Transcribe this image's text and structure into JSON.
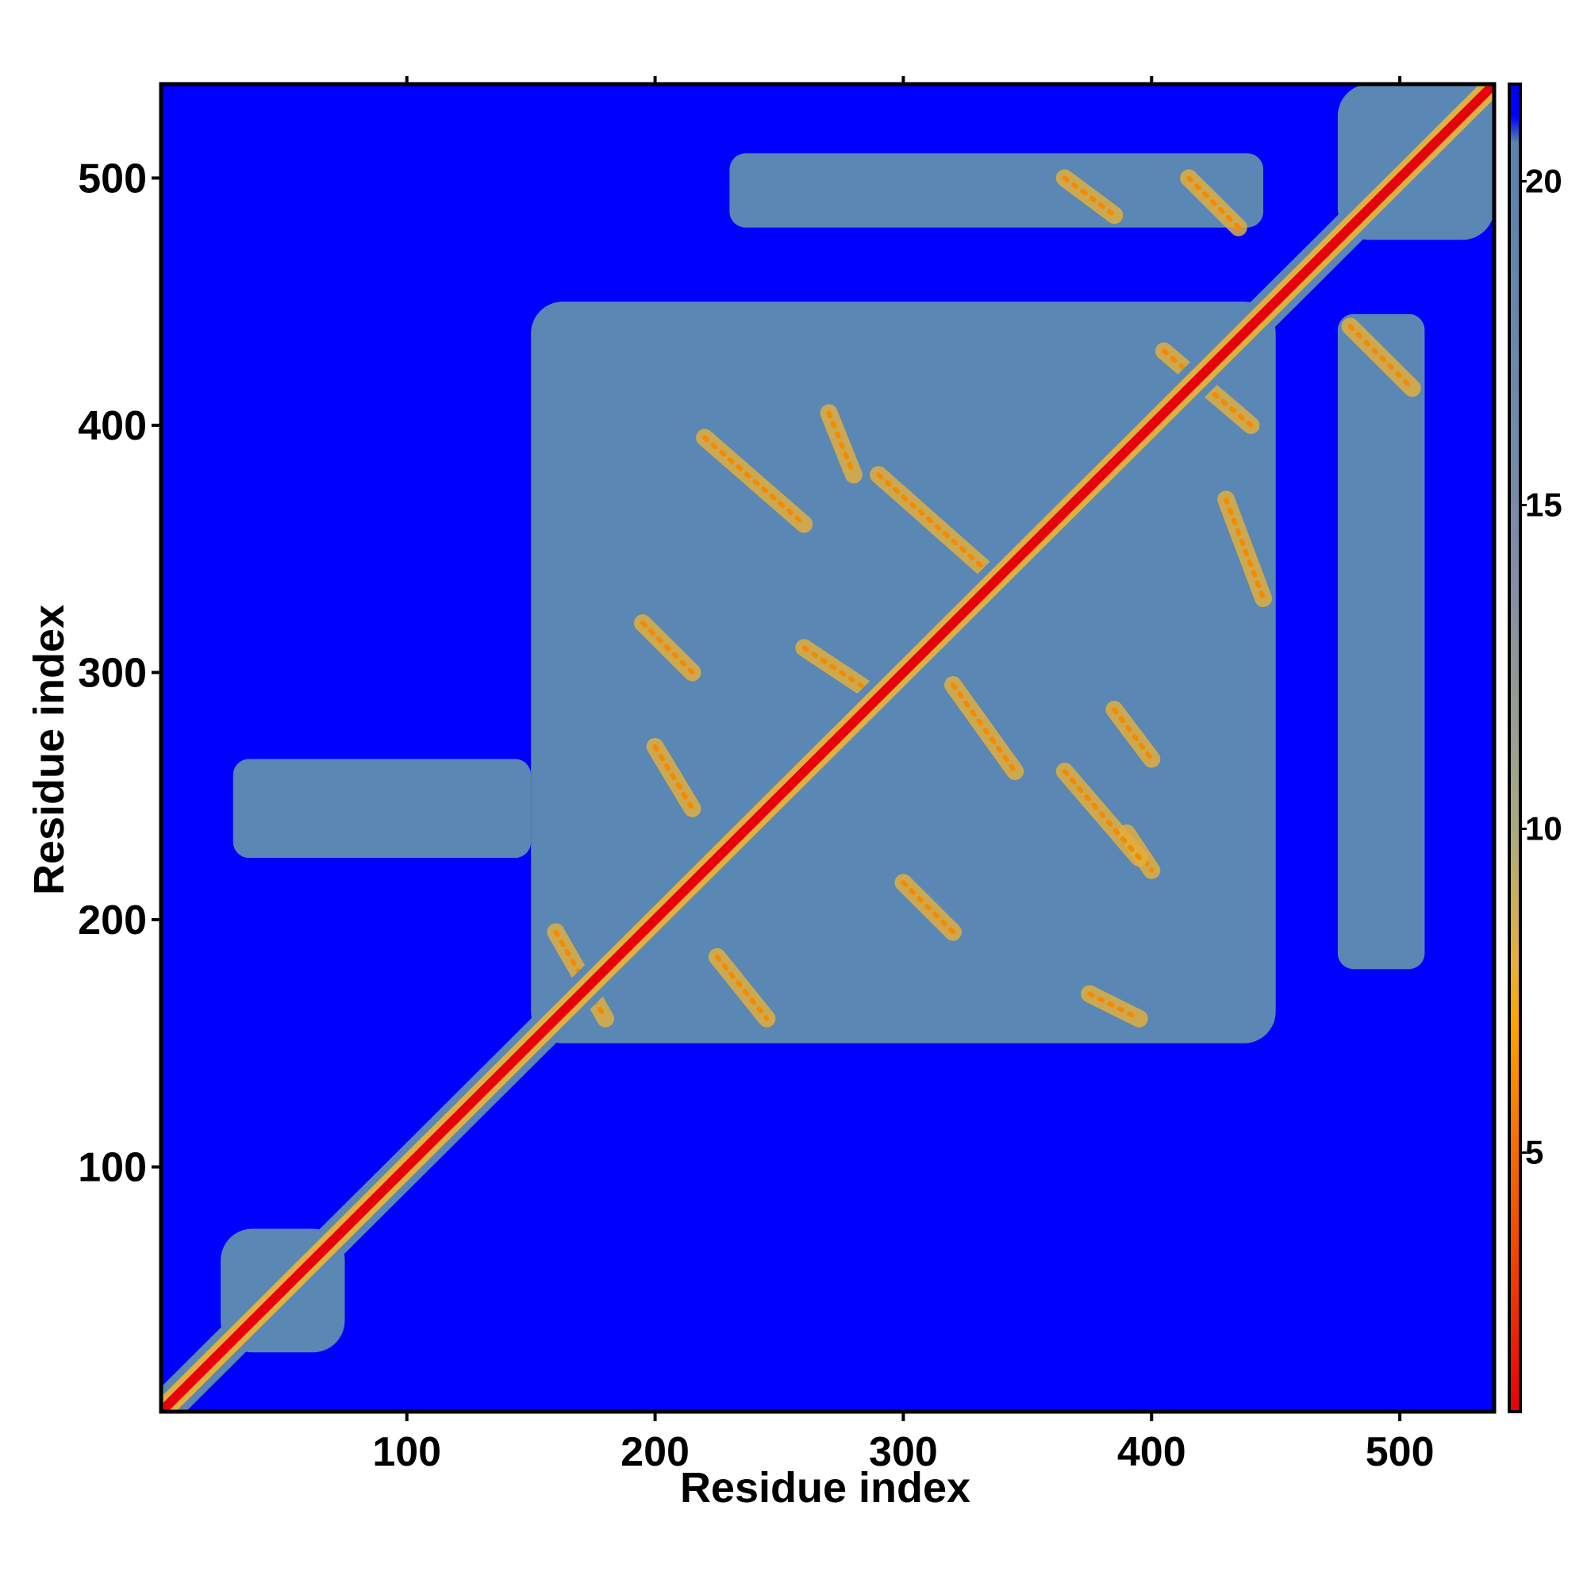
{
  "chart_data": {
    "type": "heatmap",
    "title": "",
    "xlabel": "Residue index",
    "ylabel": "Residue index",
    "xlim": [
      1,
      538
    ],
    "ylim": [
      1,
      538
    ],
    "x_ticks": [
      100,
      200,
      300,
      400,
      500
    ],
    "y_ticks": [
      100,
      200,
      300,
      400,
      500
    ],
    "colorbar": {
      "min": 1,
      "max": 21.5,
      "ticks": [
        5,
        10,
        15,
        20
      ],
      "stops": [
        {
          "value": 1,
          "color": "#e8000b"
        },
        {
          "value": 3,
          "color": "#f03b00"
        },
        {
          "value": 5,
          "color": "#f56b00"
        },
        {
          "value": 7,
          "color": "#ffa500"
        },
        {
          "value": 8,
          "color": "#e3b23c"
        },
        {
          "value": 10,
          "color": "#a9a97e"
        },
        {
          "value": 14,
          "color": "#7f8da8"
        },
        {
          "value": 20,
          "color": "#5a83ae"
        },
        {
          "value": 20.6,
          "color": "#5a83ae"
        },
        {
          "value": 21,
          "color": "#0000ff"
        },
        {
          "value": 21.5,
          "color": "#0000ff"
        }
      ]
    },
    "colors": {
      "background": "#0000ff",
      "contact_region": "#5a87b3",
      "diagonal": "#e8000b",
      "near_contact": "#e0b040",
      "contact": "#f58a00"
    },
    "features": {
      "diagonal": {
        "from": 1,
        "to": 538
      },
      "domains": [
        {
          "x": [
            150,
            450
          ],
          "y": [
            150,
            450
          ]
        },
        {
          "x": [
            25,
            75
          ],
          "y": [
            25,
            75
          ]
        },
        {
          "x": [
            475,
            538
          ],
          "y": [
            475,
            538
          ]
        }
      ],
      "off_diagonal_blocks": [
        {
          "x": [
            230,
            445
          ],
          "y": [
            480,
            510
          ]
        },
        {
          "x": [
            475,
            510
          ],
          "y": [
            180,
            445
          ]
        },
        {
          "x": [
            30,
            150
          ],
          "y": [
            225,
            265
          ]
        }
      ],
      "contact_bands": [
        {
          "x": [
            195,
            215
          ],
          "y": [
            300,
            320
          ]
        },
        {
          "x": [
            220,
            260
          ],
          "y": [
            360,
            395
          ]
        },
        {
          "x": [
            270,
            280
          ],
          "y": [
            380,
            405
          ]
        },
        {
          "x": [
            290,
            335
          ],
          "y": [
            340,
            380
          ]
        },
        {
          "x": [
            320,
            345
          ],
          "y": [
            260,
            295
          ]
        },
        {
          "x": [
            300,
            320
          ],
          "y": [
            195,
            215
          ]
        },
        {
          "x": [
            390,
            400
          ],
          "y": [
            220,
            235
          ]
        },
        {
          "x": [
            365,
            395
          ],
          "y": [
            225,
            260
          ]
        },
        {
          "x": [
            385,
            400
          ],
          "y": [
            265,
            285
          ]
        },
        {
          "x": [
            405,
            440
          ],
          "y": [
            400,
            430
          ]
        },
        {
          "x": [
            430,
            445
          ],
          "y": [
            330,
            370
          ]
        },
        {
          "x": [
            225,
            245
          ],
          "y": [
            160,
            185
          ]
        },
        {
          "x": [
            160,
            180
          ],
          "y": [
            160,
            195
          ]
        },
        {
          "x": [
            200,
            215
          ],
          "y": [
            245,
            270
          ]
        },
        {
          "x": [
            365,
            385
          ],
          "y": [
            485,
            500
          ]
        },
        {
          "x": [
            415,
            435
          ],
          "y": [
            480,
            500
          ]
        },
        {
          "x": [
            480,
            505
          ],
          "y": [
            415,
            440
          ]
        },
        {
          "x": [
            375,
            395
          ],
          "y": [
            160,
            170
          ]
        },
        {
          "x": [
            260,
            290
          ],
          "y": [
            290,
            310
          ]
        }
      ]
    }
  }
}
